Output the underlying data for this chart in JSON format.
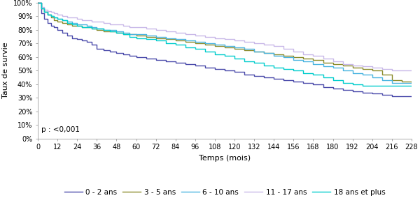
{
  "title": "",
  "xlabel": "Temps (mois)",
  "ylabel": "Taux de survie",
  "xlim": [
    0,
    228
  ],
  "ylim": [
    0,
    1.005
  ],
  "xticks": [
    0,
    12,
    24,
    36,
    48,
    60,
    72,
    84,
    96,
    108,
    120,
    132,
    144,
    156,
    168,
    180,
    192,
    204,
    216,
    228
  ],
  "yticks": [
    0.0,
    0.1,
    0.2,
    0.3,
    0.4,
    0.5,
    0.6,
    0.7,
    0.8,
    0.9,
    1.0
  ],
  "pvalue_text": "p : <0,001",
  "legend_labels": [
    "0 - 2 ans",
    "3 - 5 ans",
    "6 - 10 ans",
    "11 - 17 ans",
    "18 ans et plus"
  ],
  "colors": [
    "#4a4aaa",
    "#8b8b2a",
    "#4ab4e0",
    "#c8b8e8",
    "#00cccc"
  ],
  "curves": {
    "0-2": {
      "x": [
        0,
        2,
        4,
        6,
        8,
        10,
        12,
        15,
        18,
        21,
        24,
        27,
        30,
        33,
        36,
        40,
        44,
        48,
        52,
        56,
        60,
        66,
        72,
        78,
        84,
        90,
        96,
        102,
        108,
        114,
        120,
        126,
        132,
        138,
        144,
        150,
        156,
        162,
        168,
        174,
        180,
        186,
        192,
        198,
        204,
        210,
        216,
        222,
        228
      ],
      "y": [
        1.0,
        0.92,
        0.88,
        0.85,
        0.83,
        0.82,
        0.8,
        0.78,
        0.76,
        0.74,
        0.73,
        0.72,
        0.71,
        0.69,
        0.66,
        0.65,
        0.64,
        0.63,
        0.62,
        0.61,
        0.6,
        0.59,
        0.58,
        0.57,
        0.56,
        0.55,
        0.54,
        0.52,
        0.51,
        0.5,
        0.49,
        0.47,
        0.46,
        0.45,
        0.44,
        0.43,
        0.42,
        0.41,
        0.4,
        0.38,
        0.37,
        0.36,
        0.35,
        0.34,
        0.33,
        0.32,
        0.31,
        0.31,
        0.31
      ]
    },
    "3-5": {
      "x": [
        0,
        2,
        4,
        6,
        8,
        10,
        12,
        15,
        18,
        21,
        24,
        27,
        30,
        33,
        36,
        40,
        44,
        48,
        52,
        56,
        60,
        66,
        72,
        78,
        84,
        90,
        96,
        102,
        108,
        114,
        120,
        126,
        132,
        138,
        144,
        150,
        156,
        162,
        168,
        174,
        180,
        186,
        192,
        198,
        204,
        210,
        216,
        222,
        228
      ],
      "y": [
        1.0,
        0.96,
        0.93,
        0.91,
        0.89,
        0.87,
        0.86,
        0.85,
        0.84,
        0.83,
        0.83,
        0.82,
        0.82,
        0.81,
        0.8,
        0.79,
        0.79,
        0.78,
        0.77,
        0.77,
        0.76,
        0.75,
        0.74,
        0.73,
        0.72,
        0.71,
        0.7,
        0.69,
        0.68,
        0.67,
        0.66,
        0.65,
        0.64,
        0.63,
        0.62,
        0.61,
        0.6,
        0.59,
        0.58,
        0.56,
        0.55,
        0.54,
        0.52,
        0.51,
        0.5,
        0.47,
        0.43,
        0.42,
        0.41
      ]
    },
    "6-10": {
      "x": [
        0,
        2,
        4,
        6,
        8,
        10,
        12,
        15,
        18,
        21,
        24,
        27,
        30,
        33,
        36,
        40,
        44,
        48,
        52,
        56,
        60,
        66,
        72,
        78,
        84,
        90,
        96,
        102,
        108,
        114,
        120,
        126,
        132,
        138,
        144,
        150,
        156,
        162,
        168,
        174,
        180,
        186,
        192,
        198,
        204,
        210,
        216,
        222,
        228
      ],
      "y": [
        1.0,
        0.96,
        0.93,
        0.91,
        0.9,
        0.89,
        0.88,
        0.87,
        0.86,
        0.85,
        0.84,
        0.84,
        0.83,
        0.82,
        0.81,
        0.8,
        0.8,
        0.79,
        0.78,
        0.77,
        0.77,
        0.76,
        0.75,
        0.74,
        0.73,
        0.72,
        0.71,
        0.7,
        0.69,
        0.68,
        0.67,
        0.66,
        0.64,
        0.63,
        0.61,
        0.6,
        0.58,
        0.57,
        0.55,
        0.53,
        0.52,
        0.5,
        0.48,
        0.47,
        0.45,
        0.43,
        0.41,
        0.41,
        0.41
      ]
    },
    "11-17": {
      "x": [
        0,
        2,
        4,
        6,
        8,
        10,
        12,
        15,
        18,
        21,
        24,
        27,
        30,
        33,
        36,
        40,
        44,
        48,
        52,
        56,
        60,
        66,
        72,
        78,
        84,
        90,
        96,
        102,
        108,
        114,
        120,
        126,
        132,
        138,
        144,
        150,
        156,
        162,
        168,
        174,
        180,
        186,
        192,
        198,
        204,
        210,
        216,
        222,
        228
      ],
      "y": [
        1.0,
        0.97,
        0.95,
        0.94,
        0.93,
        0.92,
        0.91,
        0.9,
        0.89,
        0.89,
        0.88,
        0.87,
        0.87,
        0.86,
        0.86,
        0.85,
        0.84,
        0.84,
        0.83,
        0.82,
        0.82,
        0.81,
        0.8,
        0.79,
        0.78,
        0.77,
        0.76,
        0.75,
        0.74,
        0.73,
        0.72,
        0.71,
        0.7,
        0.69,
        0.68,
        0.66,
        0.64,
        0.62,
        0.61,
        0.59,
        0.57,
        0.55,
        0.54,
        0.53,
        0.52,
        0.51,
        0.5,
        0.5,
        0.5
      ]
    },
    "18+": {
      "x": [
        0,
        2,
        4,
        6,
        8,
        10,
        12,
        15,
        18,
        21,
        24,
        27,
        30,
        33,
        36,
        40,
        44,
        48,
        52,
        56,
        60,
        66,
        72,
        78,
        84,
        90,
        96,
        102,
        108,
        114,
        120,
        126,
        132,
        138,
        144,
        150,
        156,
        162,
        168,
        174,
        180,
        186,
        192,
        198,
        204,
        210,
        216,
        222,
        228
      ],
      "y": [
        1.0,
        0.96,
        0.93,
        0.91,
        0.9,
        0.89,
        0.88,
        0.87,
        0.85,
        0.84,
        0.83,
        0.82,
        0.82,
        0.81,
        0.81,
        0.8,
        0.79,
        0.78,
        0.77,
        0.75,
        0.74,
        0.73,
        0.72,
        0.7,
        0.69,
        0.67,
        0.66,
        0.64,
        0.62,
        0.61,
        0.59,
        0.57,
        0.56,
        0.54,
        0.52,
        0.51,
        0.5,
        0.48,
        0.47,
        0.45,
        0.43,
        0.41,
        0.4,
        0.39,
        0.39,
        0.39,
        0.39,
        0.39,
        0.39
      ]
    }
  },
  "background_color": "#ffffff",
  "plot_bg_color": "#ffffff",
  "linewidth": 1.0,
  "fontsize_axis_label": 8,
  "fontsize_tick": 7,
  "fontsize_legend": 7.5,
  "fontsize_pvalue": 7.5
}
